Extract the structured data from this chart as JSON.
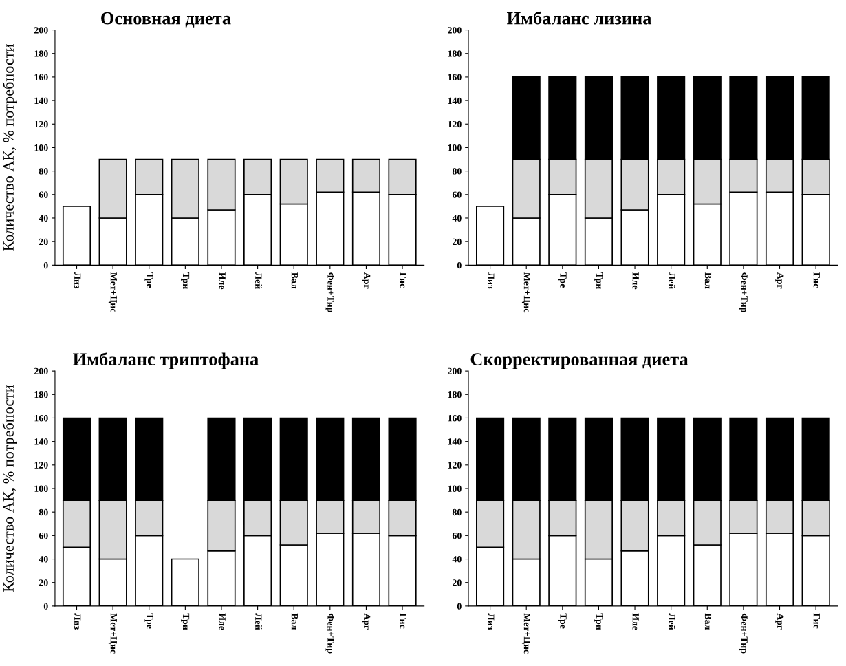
{
  "chart_data": [
    {
      "type": "bar",
      "stacked": true,
      "title": "Основная диета",
      "ylabel": "Количество АК, % потребности",
      "categories": [
        "Лиз",
        "Мет+Цис",
        "Тре",
        "Три",
        "Иле",
        "Лей",
        "Вал",
        "Фен+Тир",
        "Арг",
        "Гис"
      ],
      "ylim": [
        0,
        200
      ],
      "yticks": [
        0,
        20,
        40,
        60,
        80,
        100,
        120,
        140,
        160,
        180,
        200
      ],
      "grid": false,
      "series": [
        {
          "color": "#ffffff",
          "values": [
            50,
            40,
            60,
            40,
            47,
            60,
            52,
            62,
            62,
            60
          ]
        },
        {
          "color": "#d9d9d9",
          "values": [
            null,
            50,
            30,
            50,
            43,
            30,
            38,
            28,
            28,
            30
          ]
        }
      ]
    },
    {
      "type": "bar",
      "stacked": true,
      "title": "Имбаланс лизина",
      "categories": [
        "Лиз",
        "Мет+Цис",
        "Тре",
        "Три",
        "Иле",
        "Лей",
        "Вал",
        "Фен+Тир",
        "Арг",
        "Гис"
      ],
      "ylim": [
        0,
        200
      ],
      "yticks": [
        0,
        20,
        40,
        60,
        80,
        100,
        120,
        140,
        160,
        180,
        200
      ],
      "grid": false,
      "series": [
        {
          "color": "#ffffff",
          "values": [
            50,
            40,
            60,
            40,
            47,
            60,
            52,
            62,
            62,
            60
          ]
        },
        {
          "color": "#d9d9d9",
          "values": [
            null,
            50,
            30,
            50,
            43,
            30,
            38,
            28,
            28,
            30
          ]
        },
        {
          "color": "#000000",
          "values": [
            null,
            70,
            70,
            70,
            70,
            70,
            70,
            70,
            70,
            70
          ]
        }
      ]
    },
    {
      "type": "bar",
      "stacked": true,
      "title": "Имбаланс триптофана",
      "ylabel": "Количество АК, % потребности",
      "categories": [
        "Лиз",
        "Мет+Цис",
        "Тре",
        "Три",
        "Иле",
        "Лей",
        "Вал",
        "Фен+Тир",
        "Арг",
        "Гис"
      ],
      "ylim": [
        0,
        200
      ],
      "yticks": [
        0,
        20,
        40,
        60,
        80,
        100,
        120,
        140,
        160,
        180,
        200
      ],
      "grid": false,
      "series": [
        {
          "color": "#ffffff",
          "values": [
            50,
            40,
            60,
            40,
            47,
            60,
            52,
            62,
            62,
            60
          ]
        },
        {
          "color": "#d9d9d9",
          "values": [
            40,
            50,
            30,
            null,
            43,
            30,
            38,
            28,
            28,
            30
          ]
        },
        {
          "color": "#000000",
          "values": [
            70,
            70,
            70,
            null,
            70,
            70,
            70,
            70,
            70,
            70
          ]
        }
      ]
    },
    {
      "type": "bar",
      "stacked": true,
      "title": "Скорректированная диета",
      "categories": [
        "Лиз",
        "Мет+Цис",
        "Тре",
        "Три",
        "Иле",
        "Лей",
        "Вал",
        "Фен+Тир",
        "Арг",
        "Гис"
      ],
      "ylim": [
        0,
        200
      ],
      "yticks": [
        0,
        20,
        40,
        60,
        80,
        100,
        120,
        140,
        160,
        180,
        200
      ],
      "grid": false,
      "series": [
        {
          "color": "#ffffff",
          "values": [
            50,
            40,
            60,
            40,
            47,
            60,
            52,
            62,
            62,
            60
          ]
        },
        {
          "color": "#d9d9d9",
          "values": [
            40,
            50,
            30,
            50,
            43,
            30,
            38,
            28,
            28,
            30
          ]
        },
        {
          "color": "#000000",
          "values": [
            70,
            70,
            70,
            70,
            70,
            70,
            70,
            70,
            70,
            70
          ]
        }
      ]
    }
  ]
}
